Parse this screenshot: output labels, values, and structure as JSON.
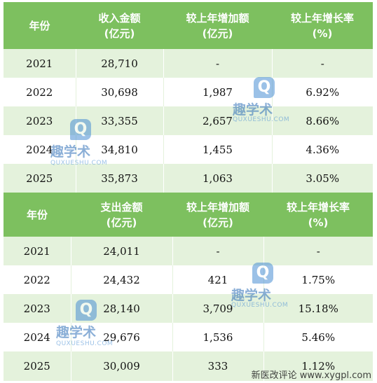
{
  "income_table": {
    "headers": [
      {
        "line1": "年份",
        "line2": ""
      },
      {
        "line1": "收入金额",
        "line2": "(亿元)"
      },
      {
        "line1": "较上年增加额",
        "line2": "(亿元)"
      },
      {
        "line1": "较上年增长率",
        "line2": "(%)"
      }
    ],
    "rows": [
      {
        "year": "2021",
        "amount": "28,710",
        "increase": "-",
        "rate": "-"
      },
      {
        "year": "2022",
        "amount": "30,698",
        "increase": "1,987",
        "rate": "6.92%"
      },
      {
        "year": "2023",
        "amount": "33,355",
        "increase": "2,657",
        "rate": "8.66%"
      },
      {
        "year": "2024",
        "amount": "34,810",
        "increase": "1,455",
        "rate": "4.36%"
      },
      {
        "year": "2025",
        "amount": "35,873",
        "increase": "1,063",
        "rate": "3.05%"
      }
    ]
  },
  "expense_table": {
    "headers": [
      {
        "line1": "年份",
        "line2": ""
      },
      {
        "line1": "支出金额",
        "line2": "(亿元)"
      },
      {
        "line1": "较上年增加额",
        "line2": "(亿元)"
      },
      {
        "line1": "较上年增长率",
        "line2": "(%)"
      }
    ],
    "rows": [
      {
        "year": "2021",
        "amount": "24,011",
        "increase": "-",
        "rate": "-"
      },
      {
        "year": "2022",
        "amount": "24,432",
        "increase": "421",
        "rate": "1.75%"
      },
      {
        "year": "2023",
        "amount": "28,140",
        "increase": "3,709",
        "rate": "15.18%"
      },
      {
        "year": "2024",
        "amount": "29,676",
        "increase": "1,536",
        "rate": "5.46%"
      },
      {
        "year": "2025",
        "amount": "30,009",
        "increase": "333",
        "rate": "1.12%"
      }
    ]
  },
  "watermark": {
    "logo_letter": "Q",
    "name": "趣学术",
    "domain": "QUXUESHU.COM"
  },
  "source_text": "新医改评论 www.xygpl.com",
  "colors": {
    "header_bg": "#7dc05f",
    "alt_row_bg": "#e4f2dc",
    "watermark": "#4a8fd4"
  }
}
